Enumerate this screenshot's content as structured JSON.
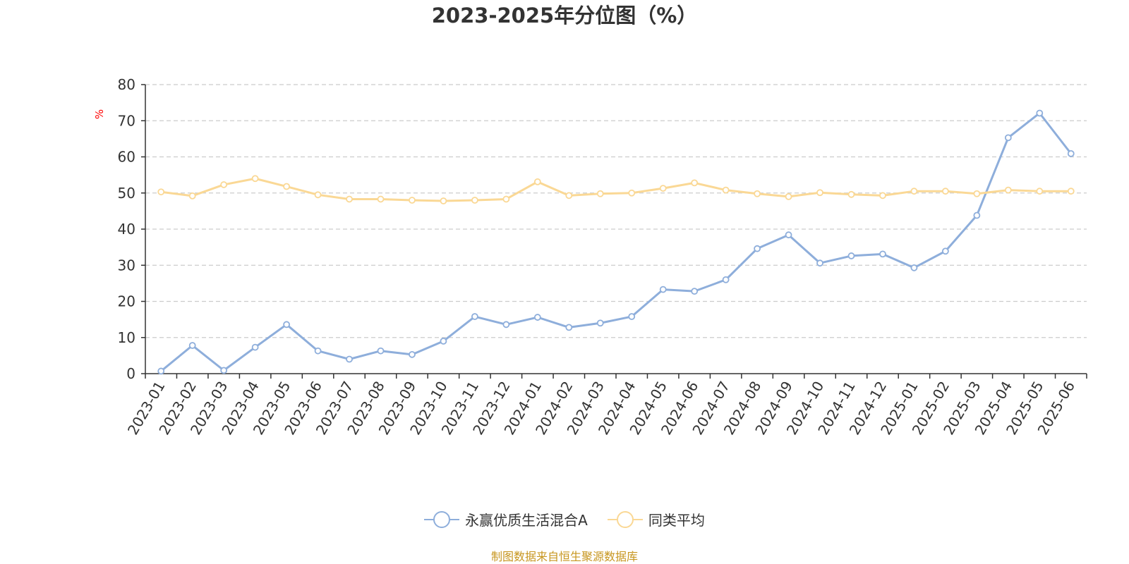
{
  "chart_data": {
    "type": "line",
    "title": "2023-2025年分位图（%）",
    "ylabel": "%",
    "xlabel": "",
    "ylim": [
      0,
      80
    ],
    "y_ticks": [
      0,
      10,
      20,
      30,
      40,
      50,
      60,
      70,
      80
    ],
    "grid": true,
    "legend_position": "bottom",
    "categories": [
      "2023-01",
      "2023-02",
      "2023-03",
      "2023-04",
      "2023-05",
      "2023-06",
      "2023-07",
      "2023-08",
      "2023-09",
      "2023-10",
      "2023-11",
      "2023-12",
      "2024-01",
      "2024-02",
      "2024-03",
      "2024-04",
      "2024-05",
      "2024-06",
      "2024-07",
      "2024-08",
      "2024-09",
      "2024-10",
      "2024-11",
      "2024-12",
      "2025-01",
      "2025-02",
      "2025-03",
      "2025-04",
      "2025-05",
      "2025-06"
    ],
    "series": [
      {
        "name": "永赢优质生活混合A",
        "color": "#8eaedb",
        "values": [
          0.7,
          7.8,
          0.9,
          7.3,
          13.6,
          6.3,
          4.0,
          6.3,
          5.3,
          9.0,
          15.8,
          13.6,
          15.6,
          12.8,
          14.0,
          15.8,
          23.3,
          22.8,
          26.0,
          34.6,
          38.4,
          30.6,
          32.6,
          33.1,
          29.3,
          33.9,
          43.8,
          65.3,
          72.1,
          60.9
        ]
      },
      {
        "name": "同类平均",
        "color": "#fad895",
        "values": [
          50.3,
          49.2,
          52.3,
          54.0,
          51.8,
          49.5,
          48.3,
          48.3,
          48.0,
          47.8,
          48.0,
          48.3,
          53.1,
          49.3,
          49.8,
          50.0,
          51.3,
          52.8,
          50.8,
          49.8,
          49.0,
          50.1,
          49.6,
          49.3,
          50.5,
          50.5,
          49.8,
          50.8,
          50.5,
          50.5
        ]
      }
    ]
  },
  "source_note": "制图数据来自恒生聚源数据库"
}
